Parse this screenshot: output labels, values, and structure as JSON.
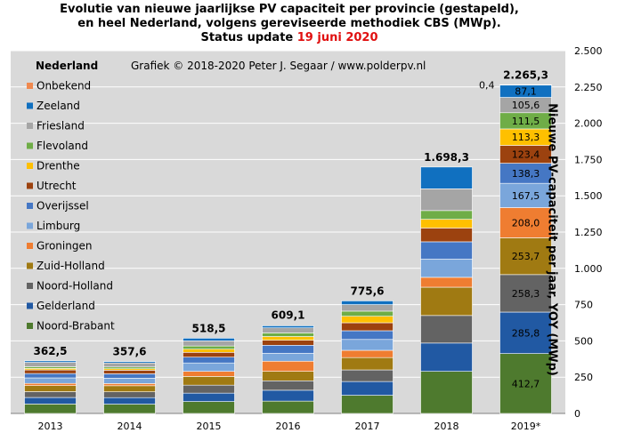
{
  "title": {
    "line1": "Evolutie van nieuwe jaarlijkse PV capaciteit per provincie (gestapeld),",
    "line2": "en heel Nederland, volgens gereviseerde methodiek CBS (MWp).",
    "line3_prefix": "Status update ",
    "line3_date": "19 juni 2020"
  },
  "credit": "Grafiek © 2018-2020 Peter J. Segaar / www.polderpv.nl",
  "legend_title": "Nederland",
  "colors": {
    "plot_bg": "#d9d9d9",
    "gridline": "#ffffff",
    "date_red": "#e01010"
  },
  "chart_data": {
    "type": "bar",
    "stacked": true,
    "categories": [
      "2013",
      "2014",
      "2015",
      "2016",
      "2017",
      "2018",
      "2019*"
    ],
    "totals": [
      362.5,
      357.6,
      518.5,
      609.1,
      775.6,
      1698.3,
      2265.3
    ],
    "total_labels": [
      "362,5",
      "357,6",
      "518,5",
      "609,1",
      "775,6",
      "1.698,3",
      "2.265,3"
    ],
    "ylim": [
      0,
      2500
    ],
    "yticks": [
      0,
      250,
      500,
      750,
      1000,
      1250,
      1500,
      1750,
      2000,
      2250,
      2500
    ],
    "ytick_labels": [
      "0",
      "250",
      "500",
      "750",
      "1.000",
      "1.250",
      "1.500",
      "1.750",
      "2.000",
      "2.250",
      "2.500"
    ],
    "ylabel": "Nieuwe PV-capaciteit per jaar, YOY (MWp)",
    "grid": true,
    "legend_placement": "left",
    "series": [
      {
        "name": "Noord-Brabant",
        "color": "#4e7a2e",
        "values": [
          65,
          64,
          82,
          85,
          125,
          290,
          412.7
        ],
        "labels": [
          "",
          "",
          "",
          "",
          "",
          "",
          "412,7"
        ]
      },
      {
        "name": "Gelderland",
        "color": "#2159a3",
        "values": [
          45,
          45,
          58,
          75,
          95,
          195,
          285.8
        ],
        "labels": [
          "",
          "",
          "",
          "",
          "",
          "",
          "285,8"
        ]
      },
      {
        "name": "Noord-Holland",
        "color": "#636363",
        "values": [
          40,
          40,
          55,
          65,
          80,
          190,
          258.3
        ],
        "labels": [
          "",
          "",
          "",
          "",
          "",
          "",
          "258,3"
        ]
      },
      {
        "name": "Zuid-Holland",
        "color": "#a07a12",
        "values": [
          42,
          42,
          60,
          65,
          85,
          195,
          253.7
        ],
        "labels": [
          "",
          "",
          "",
          "",
          "",
          "",
          "253,7"
        ]
      },
      {
        "name": "Groningen",
        "color": "#ef7d31",
        "values": [
          15,
          15,
          35,
          70,
          50,
          68,
          208.0
        ],
        "labels": [
          "",
          "",
          "",
          "",
          "",
          "",
          "208,0"
        ]
      },
      {
        "name": "Limburg",
        "color": "#7aa6db",
        "values": [
          38,
          37,
          58,
          55,
          75,
          125,
          167.5
        ],
        "labels": [
          "",
          "",
          "",
          "",
          "",
          "",
          "167,5"
        ]
      },
      {
        "name": "Overijssel",
        "color": "#4577c4",
        "values": [
          30,
          30,
          40,
          55,
          60,
          120,
          138.3
        ],
        "labels": [
          "",
          "",
          "",
          "",
          "",
          "",
          "138,3"
        ]
      },
      {
        "name": "Utrecht",
        "color": "#9c420f",
        "values": [
          25,
          25,
          33,
          35,
          55,
          95,
          123.4
        ],
        "labels": [
          "",
          "",
          "",
          "",
          "",
          "",
          "123,4"
        ]
      },
      {
        "name": "Drenthe",
        "color": "#ffc000",
        "values": [
          10,
          10,
          22,
          25,
          45,
          60,
          113.3
        ],
        "labels": [
          "",
          "",
          "",
          "",
          "",
          "",
          "113,3"
        ]
      },
      {
        "name": "Flevoland",
        "color": "#6fad47",
        "values": [
          12,
          12,
          22,
          25,
          35,
          60,
          111.5
        ],
        "labels": [
          "",
          "",
          "",
          "",
          "",
          "",
          "111,5"
        ]
      },
      {
        "name": "Friesland",
        "color": "#a5a5a5",
        "values": [
          30,
          28,
          35,
          35,
          45,
          150,
          105.6
        ],
        "labels": [
          "",
          "",
          "",
          "",
          "",
          "",
          "105,6"
        ]
      },
      {
        "name": "Zeeland",
        "color": "#1070c0",
        "values": [
          10.5,
          9.6,
          18.5,
          14.1,
          25.6,
          150.3,
          87.1
        ],
        "labels": [
          "",
          "",
          "",
          "",
          "",
          "",
          "87,1"
        ]
      },
      {
        "name": "Onbekend",
        "color": "#f0894f",
        "values": [
          0,
          0,
          0,
          0,
          0,
          0,
          0.4
        ],
        "labels": [
          "",
          "",
          "",
          "",
          "",
          "",
          "0,4"
        ]
      }
    ]
  }
}
